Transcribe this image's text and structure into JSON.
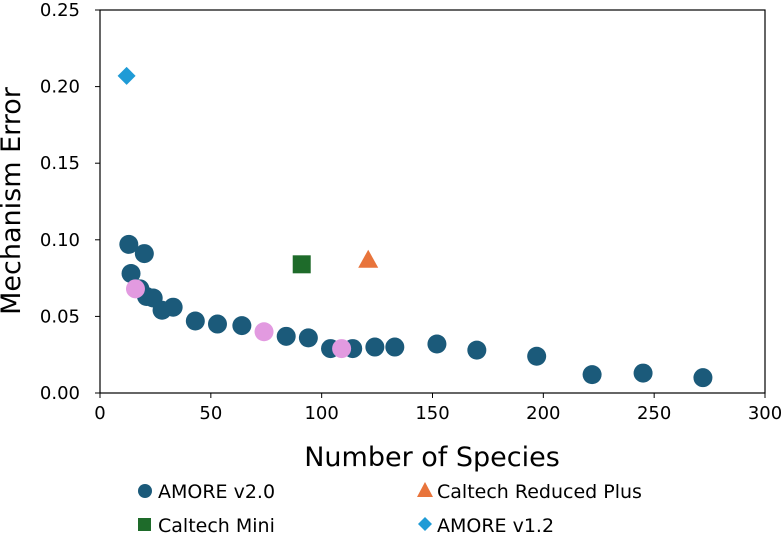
{
  "chart_data": {
    "type": "scatter",
    "title": "",
    "xlabel": "Number of Species",
    "ylabel": "Mechanism Error",
    "xlim": [
      0,
      300
    ],
    "ylim": [
      0,
      0.25
    ],
    "xticks": [
      0,
      50,
      100,
      150,
      200,
      250,
      300
    ],
    "yticks": [
      0.0,
      0.05,
      0.1,
      0.15,
      0.2,
      0.25
    ],
    "ytick_labels": [
      "0.00",
      "0.05",
      "0.10",
      "0.15",
      "0.20",
      "0.25"
    ],
    "grid": false,
    "legend_position": "bottom",
    "series": [
      {
        "name": "AMORE v2.0",
        "marker": "circle",
        "color": "#1b5a7a",
        "points": [
          {
            "x": 13,
            "y": 0.097
          },
          {
            "x": 20,
            "y": 0.091
          },
          {
            "x": 14,
            "y": 0.078
          },
          {
            "x": 18,
            "y": 0.068
          },
          {
            "x": 21,
            "y": 0.063
          },
          {
            "x": 24,
            "y": 0.062
          },
          {
            "x": 28,
            "y": 0.054
          },
          {
            "x": 33,
            "y": 0.056
          },
          {
            "x": 43,
            "y": 0.047
          },
          {
            "x": 53,
            "y": 0.045
          },
          {
            "x": 64,
            "y": 0.044
          },
          {
            "x": 84,
            "y": 0.037
          },
          {
            "x": 94,
            "y": 0.036
          },
          {
            "x": 104,
            "y": 0.029
          },
          {
            "x": 114,
            "y": 0.029
          },
          {
            "x": 124,
            "y": 0.03
          },
          {
            "x": 133,
            "y": 0.03
          },
          {
            "x": 152,
            "y": 0.032
          },
          {
            "x": 170,
            "y": 0.028
          },
          {
            "x": 197,
            "y": 0.024
          },
          {
            "x": 222,
            "y": 0.012
          },
          {
            "x": 245,
            "y": 0.013
          },
          {
            "x": 272,
            "y": 0.01
          }
        ]
      },
      {
        "name": "Caltech Reduced Plus",
        "marker": "triangle",
        "color": "#e8743b",
        "points": [
          {
            "x": 121,
            "y": 0.087
          }
        ]
      },
      {
        "name": "Caltech Mini",
        "marker": "square",
        "color": "#1e6b2a",
        "points": [
          {
            "x": 91,
            "y": 0.084
          }
        ]
      },
      {
        "name": "AMORE v1.2",
        "marker": "diamond",
        "color": "#1f9bd6",
        "points": [
          {
            "x": 12,
            "y": 0.207
          }
        ]
      },
      {
        "name": "",
        "marker": "circle",
        "color": "#e29ae0",
        "points": [
          {
            "x": 16,
            "y": 0.068
          },
          {
            "x": 74,
            "y": 0.04
          },
          {
            "x": 109,
            "y": 0.029
          }
        ]
      }
    ]
  }
}
